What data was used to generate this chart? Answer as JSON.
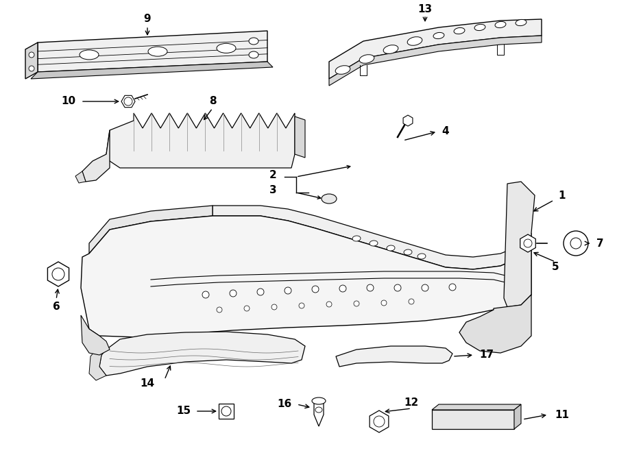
{
  "bg_color": "#ffffff",
  "line_color": "#000000",
  "fig_w": 9.0,
  "fig_h": 6.61,
  "dpi": 100
}
